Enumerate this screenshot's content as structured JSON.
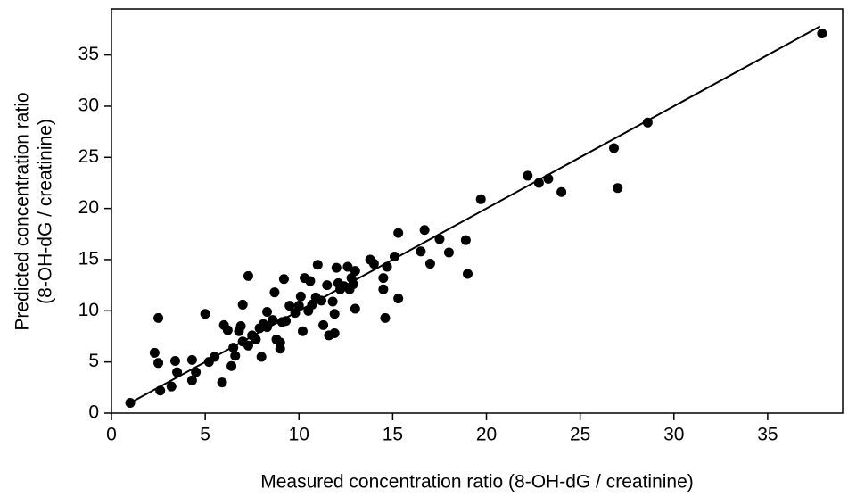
{
  "chart_data": {
    "type": "scatter",
    "x_label": "Measured concentration ratio (8-OH-dG / creatinine)",
    "y_label": [
      "Predicted concentration ratio",
      "(8-OH-dG / creatinine)"
    ],
    "xlim": [
      0,
      39
    ],
    "ylim": [
      0,
      39.5
    ],
    "xticks": [
      0,
      5,
      10,
      15,
      20,
      25,
      30,
      35
    ],
    "yticks": [
      0,
      5,
      10,
      15,
      20,
      25,
      30,
      35
    ],
    "color": "#000000",
    "x": [
      1.0,
      2.3,
      2.5,
      2.5,
      2.6,
      3.2,
      3.4,
      3.5,
      4.3,
      4.3,
      4.5,
      5.0,
      5.2,
      5.5,
      5.9,
      6.0,
      6.2,
      6.4,
      6.5,
      6.6,
      6.8,
      6.9,
      7.0,
      7.0,
      7.3,
      7.3,
      7.5,
      7.7,
      7.9,
      8.0,
      8.1,
      8.3,
      8.3,
      8.6,
      8.7,
      8.8,
      9.0,
      9.0,
      9.1,
      9.2,
      9.3,
      9.5,
      9.8,
      10.0,
      10.1,
      10.2,
      10.3,
      10.5,
      10.6,
      10.7,
      10.9,
      11.0,
      11.2,
      11.3,
      11.5,
      11.6,
      11.8,
      11.9,
      11.9,
      12.0,
      12.1,
      12.2,
      12.4,
      12.6,
      12.7,
      12.8,
      12.9,
      13.0,
      13.0,
      13.8,
      14.0,
      14.5,
      14.5,
      14.6,
      14.7,
      15.1,
      15.3,
      15.3,
      16.5,
      16.7,
      17.0,
      17.5,
      18.0,
      18.9,
      19.0,
      19.7,
      22.2,
      22.8,
      23.3,
      24.0,
      26.8,
      27.0,
      28.6,
      37.9
    ],
    "y": [
      1.0,
      5.9,
      9.3,
      4.9,
      2.2,
      2.6,
      5.1,
      4.0,
      3.2,
      5.2,
      4.0,
      9.7,
      5.0,
      5.5,
      3.0,
      8.6,
      8.1,
      4.6,
      6.4,
      5.6,
      8.0,
      8.5,
      10.6,
      7.0,
      6.6,
      13.4,
      7.6,
      7.2,
      8.3,
      5.5,
      8.7,
      8.4,
      9.9,
      9.1,
      11.8,
      7.2,
      6.9,
      6.3,
      8.9,
      13.1,
      9.0,
      10.5,
      9.8,
      10.5,
      11.4,
      8.0,
      13.2,
      10.0,
      12.9,
      10.6,
      11.3,
      14.5,
      11.0,
      8.6,
      12.5,
      7.6,
      10.9,
      9.7,
      7.8,
      14.2,
      12.7,
      12.1,
      12.4,
      14.3,
      12.1,
      13.2,
      12.6,
      13.9,
      10.2,
      15.0,
      14.6,
      12.1,
      13.2,
      9.3,
      14.3,
      15.3,
      17.6,
      11.2,
      15.8,
      17.9,
      14.6,
      17.0,
      15.7,
      16.9,
      13.6,
      20.9,
      23.2,
      22.5,
      22.9,
      21.6,
      25.9,
      22.0,
      28.4,
      37.1
    ],
    "fit": {
      "x": [
        1.0,
        37.8
      ],
      "y": [
        1.0,
        37.8
      ]
    }
  }
}
